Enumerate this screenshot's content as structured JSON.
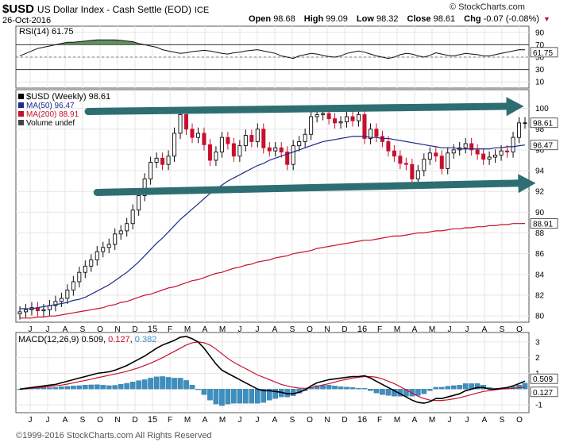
{
  "header": {
    "symbol": "$USD",
    "description": "US Dollar Index - Cash Settle (EOD)",
    "exchange": "ICE",
    "date": "26-Oct-2016",
    "logo": "© StockCharts.com",
    "open_label": "Open",
    "open": "98.68",
    "high_label": "High",
    "high": "99.09",
    "low_label": "Low",
    "low": "98.32",
    "close_label": "Close",
    "close": "98.61",
    "chg_label": "Chg",
    "chg": "-0.07 (-0.08%)",
    "caret": "▼"
  },
  "footer": {
    "copyright": "©1999-2016 StockCharts.com All Rights Reserved"
  },
  "colors": {
    "up": "#0a0a0a",
    "down": "#c8102e",
    "ma50": "#1f2a8a",
    "ma200": "#c8102e",
    "rsi_fill": "#5f8f5f",
    "macd_hist": "#3c8fc0",
    "arrow": "#2e6e73"
  },
  "chart_data": [
    {
      "type": "line",
      "panel": "rsi",
      "label": "RSI(14) 61.75",
      "ylim": [
        0,
        100
      ],
      "y_ticks": [
        "90",
        "70",
        "50",
        "30",
        "10"
      ],
      "last_value_label": "61.75",
      "weeks": 86,
      "x_tick_labels": [
        "J",
        "J",
        "A",
        "S",
        "O",
        "N",
        "D",
        "15",
        "F",
        "M",
        "A",
        "M",
        "J",
        "J",
        "A",
        "S",
        "O",
        "N",
        "D",
        "16",
        "F",
        "M",
        "A",
        "M",
        "J",
        "J",
        "A",
        "S",
        "O"
      ],
      "values": [
        52,
        56,
        60,
        64,
        66,
        68,
        70,
        72,
        74,
        74,
        75,
        76,
        77,
        78,
        78,
        78,
        78,
        77,
        76,
        75,
        72,
        70,
        68,
        66,
        62,
        60,
        58,
        56,
        57,
        59,
        60,
        61,
        60,
        58,
        56,
        55,
        57,
        58,
        60,
        61,
        62,
        60,
        58,
        56,
        52,
        50,
        48,
        52,
        54,
        56,
        55,
        53,
        51,
        50,
        52,
        56,
        58,
        60,
        58,
        55,
        52,
        50,
        48,
        50,
        54,
        56,
        55,
        52,
        50,
        53,
        57,
        55,
        53,
        52,
        54,
        56,
        55,
        54,
        52,
        52,
        54,
        56,
        58,
        60,
        62,
        61.75
      ]
    },
    {
      "type": "candlestick",
      "panel": "price",
      "legend": [
        "$USD (Weekly) 98.61",
        "MA(50) 96.47",
        "MA(200) 88.91",
        "Volume undef"
      ],
      "ylim": [
        79.4,
        101.8
      ],
      "y_ticks": [
        "100",
        "98",
        "96",
        "94",
        "92",
        "90",
        "88",
        "86",
        "84",
        "82",
        "80"
      ],
      "last_labels": {
        "price": "98.61",
        "ma50": "96.47",
        "ma200": "88.91"
      },
      "x_tick_labels": [
        "J",
        "J",
        "A",
        "S",
        "O",
        "N",
        "D",
        "15",
        "F",
        "M",
        "A",
        "M",
        "J",
        "J",
        "A",
        "S",
        "O",
        "N",
        "D",
        "16",
        "F",
        "M",
        "A",
        "M",
        "J",
        "J",
        "A",
        "S",
        "O"
      ],
      "close": [
        80.4,
        80.6,
        80.8,
        80.5,
        80.6,
        81.0,
        81.4,
        81.7,
        82.5,
        83.3,
        84.2,
        84.8,
        85.4,
        86.2,
        86.6,
        86.9,
        87.9,
        88.2,
        88.9,
        90.2,
        91.6,
        93.2,
        94.8,
        95.2,
        94.6,
        95.4,
        97.6,
        99.4,
        98.0,
        97.2,
        97.6,
        96.5,
        95.0,
        95.8,
        97.2,
        96.6,
        95.4,
        96.4,
        97.4,
        96.8,
        98.0,
        96.2,
        95.9,
        96.2,
        95.8,
        94.6,
        96.4,
        96.8,
        97.5,
        99.2,
        99.4,
        99.5,
        99.0,
        98.6,
        98.7,
        99.2,
        98.8,
        99.4,
        97.1,
        98.0,
        97.3,
        96.8,
        95.9,
        95.4,
        94.7,
        94.6,
        93.2,
        94.0,
        95.1,
        95.7,
        95.4,
        94.2,
        95.7,
        96.0,
        96.2,
        96.6,
        96.0,
        95.6,
        95.1,
        95.3,
        95.5,
        95.9,
        95.8,
        97.2,
        98.6,
        98.61
      ],
      "ma50": [
        80.7,
        80.7,
        80.7,
        80.8,
        80.9,
        81.0,
        81.1,
        81.2,
        81.3,
        81.5,
        81.6,
        81.8,
        82.1,
        82.4,
        82.7,
        83.0,
        83.4,
        83.8,
        84.2,
        84.7,
        85.2,
        85.8,
        86.4,
        87.0,
        87.5,
        88.1,
        88.7,
        89.3,
        89.8,
        90.3,
        90.8,
        91.3,
        91.8,
        92.2,
        92.6,
        93.0,
        93.3,
        93.6,
        93.9,
        94.2,
        94.5,
        94.7,
        95.0,
        95.2,
        95.4,
        95.6,
        95.8,
        96.0,
        96.2,
        96.4,
        96.6,
        96.8,
        96.9,
        97.0,
        97.1,
        97.2,
        97.3,
        97.3,
        97.3,
        97.2,
        97.2,
        97.1,
        97.1,
        97.0,
        96.9,
        96.8,
        96.7,
        96.6,
        96.5,
        96.4,
        96.3,
        96.2,
        96.2,
        96.2,
        96.1,
        96.1,
        96.1,
        96.1,
        96.1,
        96.1,
        96.2,
        96.2,
        96.3,
        96.3,
        96.4,
        96.47
      ],
      "ma200": [
        79.8,
        79.8,
        79.8,
        79.9,
        79.9,
        80.0,
        80.0,
        80.1,
        80.2,
        80.3,
        80.4,
        80.5,
        80.6,
        80.7,
        80.8,
        81.0,
        81.1,
        81.3,
        81.4,
        81.6,
        81.8,
        82.0,
        82.1,
        82.3,
        82.5,
        82.7,
        82.8,
        83.0,
        83.2,
        83.4,
        83.5,
        83.7,
        83.9,
        84.1,
        84.2,
        84.4,
        84.6,
        84.7,
        84.9,
        85.0,
        85.2,
        85.3,
        85.4,
        85.6,
        85.7,
        85.8,
        86.0,
        86.1,
        86.2,
        86.3,
        86.5,
        86.6,
        86.7,
        86.8,
        86.9,
        87.0,
        87.1,
        87.2,
        87.3,
        87.3,
        87.4,
        87.5,
        87.6,
        87.7,
        87.7,
        87.8,
        87.9,
        88.0,
        88.0,
        88.1,
        88.2,
        88.2,
        88.3,
        88.4,
        88.4,
        88.5,
        88.5,
        88.6,
        88.6,
        88.7,
        88.7,
        88.8,
        88.8,
        88.9,
        88.9,
        88.91
      ],
      "trendlines": [
        {
          "from": [
            11.5,
            99.7
          ],
          "to": [
            84,
            100.2
          ]
        },
        {
          "from": [
            13,
            91.9
          ],
          "to": [
            86,
            92.8
          ]
        }
      ]
    },
    {
      "type": "line",
      "panel": "macd",
      "label_prefix": "MACD(12,26,9)",
      "label_macd": "0.509",
      "label_signal": "0.127",
      "label_hist": "0.382",
      "ylim": [
        -1.5,
        3.6
      ],
      "y_ticks": [
        "3",
        "2",
        "1",
        "-1"
      ],
      "last_labels": {
        "macd": "0.509",
        "signal": "0.127"
      },
      "x_tick_labels": [
        "J",
        "J",
        "A",
        "S",
        "O",
        "N",
        "D",
        "15",
        "F",
        "M",
        "A",
        "M",
        "J",
        "J",
        "A",
        "S",
        "O",
        "N",
        "D",
        "16",
        "F",
        "M",
        "A",
        "M",
        "J",
        "J",
        "A",
        "S",
        "O"
      ],
      "macd": [
        0.0,
        0.05,
        0.1,
        0.15,
        0.2,
        0.25,
        0.3,
        0.4,
        0.5,
        0.6,
        0.7,
        0.8,
        0.9,
        1.0,
        1.05,
        1.1,
        1.2,
        1.35,
        1.5,
        1.7,
        1.9,
        2.1,
        2.35,
        2.6,
        2.8,
        2.95,
        3.1,
        3.3,
        3.35,
        3.2,
        3.0,
        2.6,
        2.1,
        1.6,
        1.2,
        1.0,
        0.8,
        0.6,
        0.4,
        0.2,
        0.0,
        -0.1,
        -0.1,
        -0.15,
        -0.2,
        -0.3,
        -0.3,
        -0.2,
        -0.05,
        0.2,
        0.4,
        0.5,
        0.6,
        0.65,
        0.7,
        0.75,
        0.8,
        0.8,
        0.85,
        0.7,
        0.5,
        0.3,
        0.1,
        -0.1,
        -0.3,
        -0.5,
        -0.7,
        -0.85,
        -0.9,
        -0.8,
        -0.6,
        -0.6,
        -0.5,
        -0.4,
        -0.3,
        -0.1,
        0.0,
        0.1,
        0.1,
        0.0,
        0.0,
        0.05,
        0.1,
        0.2,
        0.35,
        0.509
      ],
      "signal": [
        0.0,
        0.02,
        0.05,
        0.08,
        0.12,
        0.16,
        0.2,
        0.25,
        0.32,
        0.4,
        0.48,
        0.55,
        0.63,
        0.72,
        0.8,
        0.88,
        0.96,
        1.04,
        1.13,
        1.24,
        1.36,
        1.5,
        1.65,
        1.82,
        2.0,
        2.2,
        2.4,
        2.6,
        2.8,
        2.95,
        3.0,
        2.95,
        2.8,
        2.55,
        2.25,
        1.95,
        1.7,
        1.5,
        1.3,
        1.1,
        0.9,
        0.75,
        0.6,
        0.45,
        0.3,
        0.2,
        0.12,
        0.06,
        0.05,
        0.1,
        0.18,
        0.26,
        0.35,
        0.45,
        0.55,
        0.62,
        0.7,
        0.75,
        0.8,
        0.8,
        0.75,
        0.65,
        0.5,
        0.35,
        0.15,
        -0.05,
        -0.25,
        -0.45,
        -0.6,
        -0.7,
        -0.72,
        -0.72,
        -0.68,
        -0.62,
        -0.55,
        -0.45,
        -0.35,
        -0.25,
        -0.15,
        -0.1,
        -0.05,
        0.0,
        0.02,
        0.05,
        0.09,
        0.127
      ]
    }
  ]
}
